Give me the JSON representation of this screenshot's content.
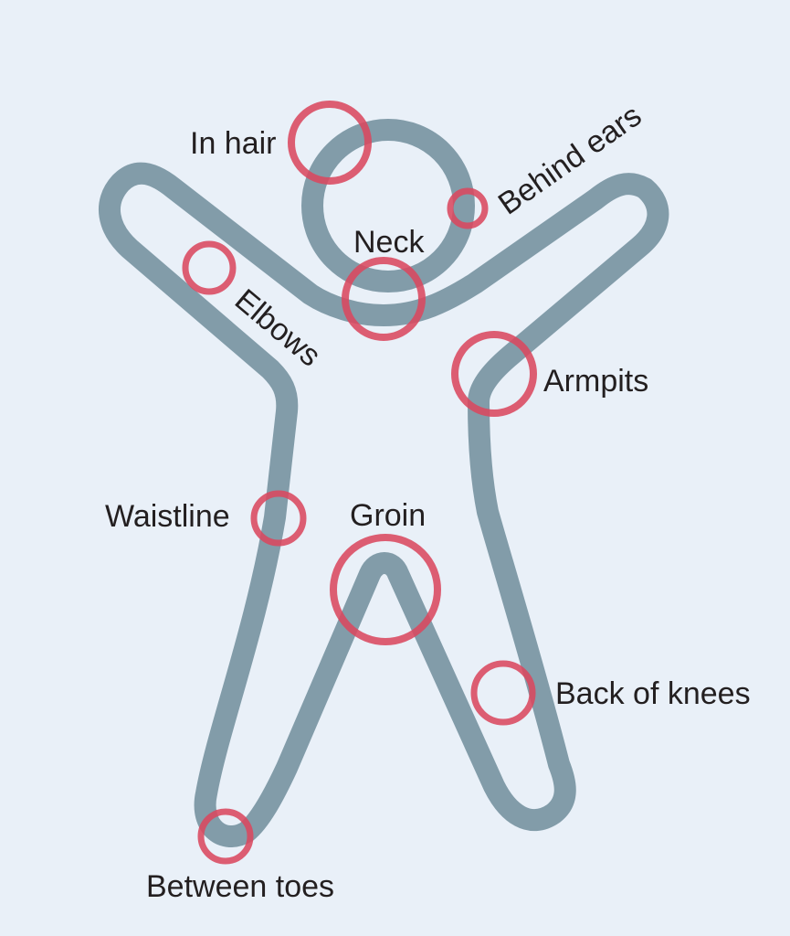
{
  "colors": {
    "background": "#e9f0f8",
    "body_outline": "#829ca9",
    "marker": "#d9485f"
  },
  "labels": {
    "in_hair": "In hair",
    "behind_ears": "Behind ears",
    "neck": "Neck",
    "elbows": "Elbows",
    "armpits": "Armpits",
    "waistline": "Waistline",
    "groin": "Groin",
    "back_of_knees": "Back of knees",
    "between_toes": "Between toes"
  }
}
